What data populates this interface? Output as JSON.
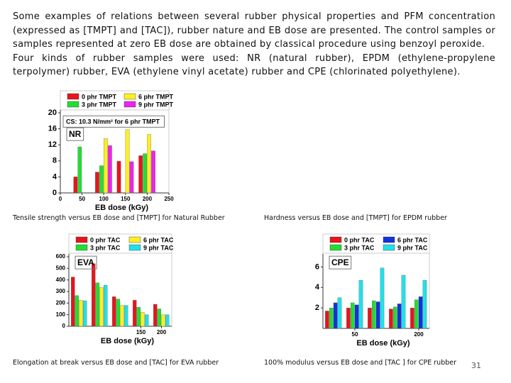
{
  "paragraphs": [
    "Some examples of relations between several rubber physical properties and PFM concentration (expressed as [TMPT] and [TAC]), rubber nature and EB dose are presented. The control samples or samples represented at zero EB dose are obtained by classical procedure using benzoyl peroxide.",
    "Four kinds of rubber samples were used: NR (natural rubber), EPDM (ethylene-propylene terpolymer) rubber, EVA (ethylene vinyl acetate) rubber and CPE (chlorinated polyethylene)."
  ],
  "captions": [
    "Tensile strength versus EB dose and [TMPT]  for Natural Rubber",
    "Hardness versus EB dose and [TMPT]  for EPDM rubber",
    "Elongation at break versus EB dose and [TAC] for EVA rubber",
    "100%  modulus versus EB dose and [TAC ] for CPE rubber"
  ],
  "page_number": "31",
  "chart_data": [
    {
      "type": "bar",
      "label": "NR",
      "annotation": "CS: 10.3 N/mm² for 6 phr TMPT",
      "x_label": "EB dose (kGy)",
      "x": [
        50,
        100,
        150,
        200
      ],
      "xlim": [
        0,
        250
      ],
      "xticks": [
        0,
        50,
        100,
        150,
        200,
        250
      ],
      "ylim": [
        0,
        20
      ],
      "yticks": [
        0,
        4,
        8,
        12,
        16,
        20
      ],
      "series": [
        {
          "name": "0 phr TMPT",
          "color": "#e8141c",
          "values": [
            4,
            5.2,
            7.9,
            9.3
          ]
        },
        {
          "name": "3 phr TMPT",
          "color": "#22dd33",
          "values": [
            11.5,
            6.8,
            null,
            9.8
          ]
        },
        {
          "name": "6 phr TMPT",
          "color": "#ffee22",
          "values": [
            null,
            13.6,
            15.8,
            14.6
          ]
        },
        {
          "name": "9 phr TMPT",
          "color": "#ee22ee",
          "values": [
            null,
            11.8,
            7.8,
            10.5
          ]
        }
      ]
    },
    {
      "type": "bar",
      "label": "EVA",
      "x_label": "EB dose (kGy)",
      "x": [
        0,
        50,
        100,
        150,
        200
      ],
      "xlim": [
        -25,
        225
      ],
      "xticks": [
        150,
        200
      ],
      "ylim": [
        0,
        600
      ],
      "yticks": [
        0,
        100,
        200,
        300,
        400,
        500,
        600
      ],
      "series": [
        {
          "name": "0 phr TAC",
          "color": "#e8141c",
          "values": [
            425,
            540,
            255,
            225,
            190
          ]
        },
        {
          "name": "3 phr TAC",
          "color": "#22dd33",
          "values": [
            265,
            375,
            235,
            165,
            150
          ]
        },
        {
          "name": "6 phr TAC",
          "color": "#ffee22",
          "values": [
            225,
            335,
            180,
            120,
            100
          ]
        },
        {
          "name": "9 phr TAC",
          "color": "#22e0e8",
          "values": [
            220,
            355,
            180,
            100,
            100
          ]
        }
      ]
    },
    {
      "type": "bar",
      "label": "CPE",
      "x_label": "EB dose (kGy)",
      "x": [
        0,
        50,
        100,
        150,
        200
      ],
      "xlim": [
        -25,
        225
      ],
      "xticks": [
        50,
        200
      ],
      "ylim": [
        0,
        7
      ],
      "yticks": [
        2,
        4,
        6
      ],
      "series": [
        {
          "name": "0 phr TAC",
          "color": "#e8141c",
          "values": [
            1.7,
            2.0,
            2.0,
            1.9,
            2.0
          ]
        },
        {
          "name": "3 phr TAC",
          "color": "#22dd33",
          "values": [
            2.0,
            2.5,
            2.7,
            2.1,
            2.8
          ]
        },
        {
          "name": "6 phr TAC",
          "color": "#1133dd",
          "values": [
            2.5,
            2.3,
            2.6,
            2.4,
            3.1
          ]
        },
        {
          "name": "9 phr TAC",
          "color": "#22e0e8",
          "values": [
            3.0,
            4.7,
            5.9,
            5.2,
            4.7
          ]
        }
      ]
    }
  ]
}
